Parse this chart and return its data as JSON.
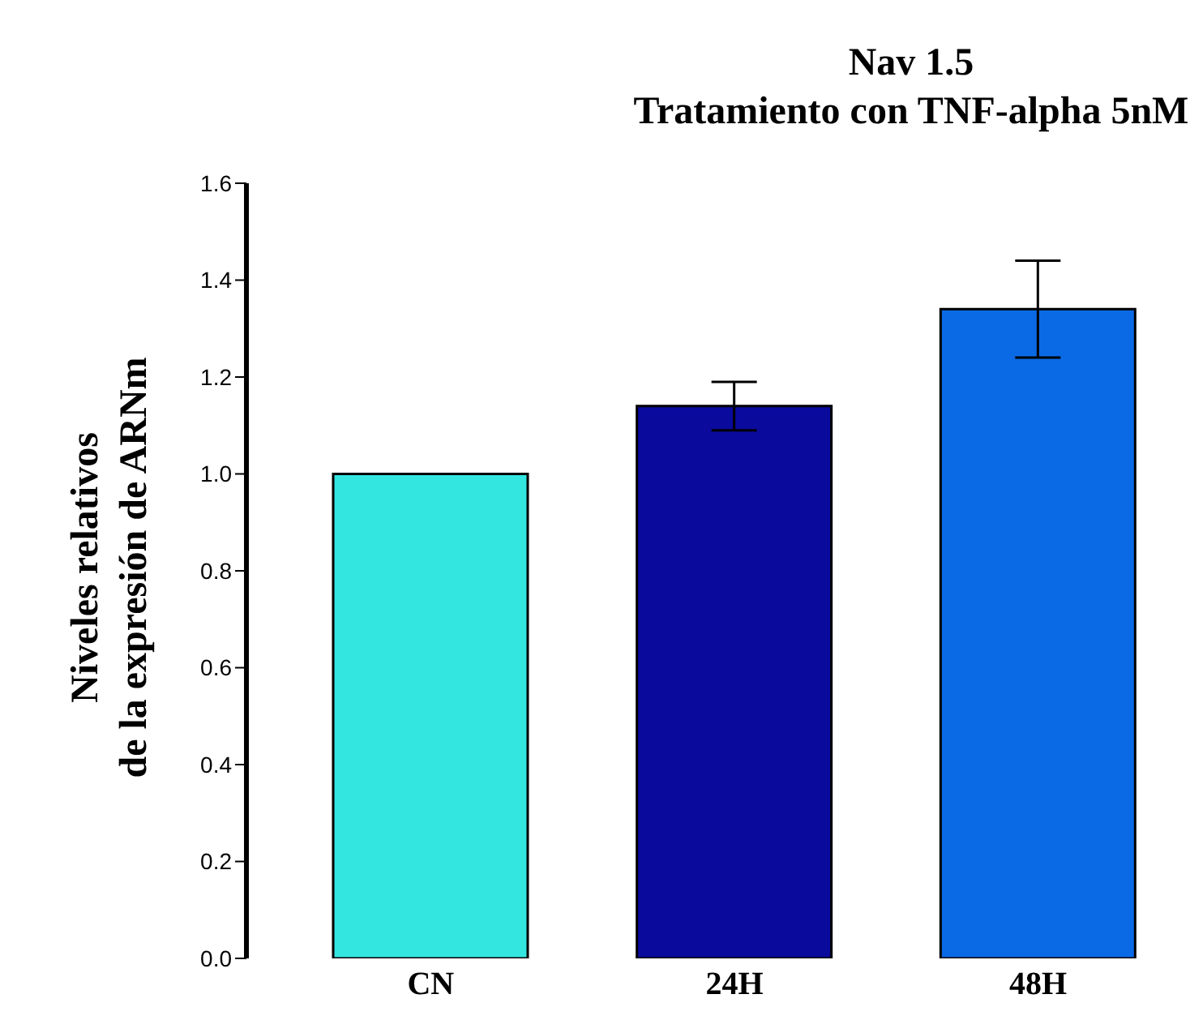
{
  "chart_data": {
    "type": "bar",
    "title": "Nav 1.5\nTratamiento con TNF-alpha 5nM",
    "ylabel": "Niveles relativos\nde la expresión de ARNm",
    "categories": [
      "CN",
      "24H",
      "48H"
    ],
    "values": [
      1.0,
      1.14,
      1.34
    ],
    "errors": [
      null,
      0.05,
      0.1
    ],
    "colors": [
      "#33e6e0",
      "#0a0a9c",
      "#0a6ae6"
    ],
    "ylim": [
      0,
      1.6
    ],
    "yticks": [
      {
        "value": 0,
        "label": "0.0"
      },
      0.2,
      0.4,
      0.6,
      0.8,
      {
        "value": 1,
        "label": "1.0"
      },
      1.2,
      1.4,
      1.6
    ],
    "grid": false,
    "legend": false
  }
}
